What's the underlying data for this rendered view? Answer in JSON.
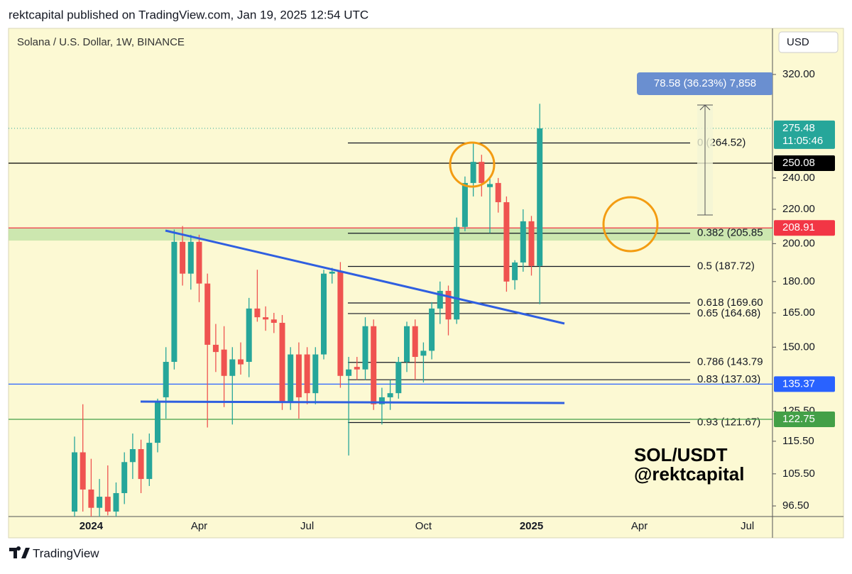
{
  "header": "rektcapital published on TradingView.com, Jan 19, 2025 12:54 UTC",
  "footer": "TradingView",
  "chart_data": {
    "type": "candlestick",
    "title": "Solana / U.S. Dollar, 1W, BINANCE",
    "currency": "USD",
    "watermark": [
      "SOL/USDT",
      "@rektcapital"
    ],
    "log_scale": true,
    "up_color": "#26a69a",
    "down_color": "#ef5350",
    "categories": [
      null,
      null,
      "2024",
      null,
      null,
      null,
      null,
      null,
      null,
      null,
      null,
      null,
      null,
      null,
      null,
      "Apr",
      null,
      null,
      null,
      null,
      null,
      null,
      null,
      null,
      null,
      null,
      null,
      null,
      "Jul",
      null,
      null,
      null,
      null,
      null,
      null,
      null,
      null,
      null,
      null,
      null,
      null,
      null,
      "Oct",
      null,
      null,
      null,
      null,
      null,
      null,
      null,
      null,
      null,
      null,
      null,
      null,
      "2025",
      null,
      null,
      null,
      null,
      null,
      null,
      null,
      null,
      null,
      null,
      null,
      null,
      "Apr",
      null,
      null,
      null,
      null,
      null,
      null,
      null,
      null,
      null,
      null,
      null,
      null,
      "Jul",
      null,
      null,
      null
    ],
    "open": [
      95,
      112,
      101,
      96,
      99,
      95,
      100,
      109,
      113,
      104,
      115,
      130.5,
      144,
      201,
      184,
      201,
      179,
      151,
      149,
      138.5,
      145,
      144,
      167,
      163,
      162,
      160.5,
      129,
      147,
      147,
      132,
      147,
      184,
      185,
      138.5,
      142,
      141,
      159,
      128,
      130.5,
      132,
      144,
      159,
      146.5,
      148.5,
      167,
      175.4,
      162,
      209.5,
      236.7,
      251,
      234,
      236.7,
      224.4,
      180.7,
      189.8,
      212.8,
      188,
      null,
      null,
      null,
      null,
      null,
      null,
      null,
      null,
      null,
      null,
      null,
      null,
      null,
      null,
      null,
      null,
      null,
      null,
      null,
      null,
      null,
      null,
      null,
      null,
      null,
      null,
      null,
      null
    ],
    "high": [
      117,
      128,
      110,
      104,
      108,
      103,
      112,
      118,
      116,
      118,
      130,
      150,
      208,
      210,
      205,
      205,
      184,
      160,
      159,
      150,
      152,
      172,
      186,
      168,
      165,
      164,
      150,
      152,
      150,
      150,
      186,
      187,
      190,
      146,
      146,
      163,
      162,
      134,
      137,
      146,
      161,
      162,
      152,
      170,
      180,
      178,
      215,
      241,
      265,
      256,
      240,
      240,
      228,
      191,
      220,
      216,
      295,
      null,
      null,
      null,
      null,
      null,
      null,
      null,
      null,
      null,
      null,
      null,
      null,
      null,
      null,
      null,
      null,
      null,
      null,
      null,
      null,
      null,
      null,
      null,
      null,
      null,
      null,
      null,
      null
    ],
    "low": [
      93,
      95,
      93,
      93,
      94,
      92,
      97,
      104,
      100,
      102,
      112,
      123,
      141,
      178,
      176,
      170,
      120,
      140,
      127,
      121,
      139,
      138,
      161,
      157,
      156,
      126,
      126,
      123,
      128,
      128,
      145,
      179,
      134,
      111,
      137,
      137,
      126,
      121,
      126,
      130,
      140,
      137,
      136,
      145,
      160,
      155,
      160,
      207,
      228,
      228,
      206,
      218,
      175,
      176,
      185,
      183,
      169,
      null,
      null,
      null,
      null,
      null,
      null,
      null,
      null,
      null,
      null,
      null,
      null,
      null,
      null,
      null,
      null,
      null,
      null,
      null,
      null,
      null,
      null,
      null,
      null,
      null,
      null,
      null,
      null
    ],
    "close": [
      112,
      101,
      96,
      99,
      95,
      100,
      109,
      113,
      104,
      115,
      129,
      144,
      201,
      184,
      201,
      179,
      151,
      148,
      138.5,
      145,
      143,
      167,
      163,
      162,
      160.5,
      129,
      147,
      130.5,
      132,
      147,
      184,
      185,
      138.5,
      141,
      141,
      159,
      128,
      130.5,
      132,
      144,
      159,
      146,
      148.5,
      167,
      175.4,
      162,
      209.5,
      236.7,
      251,
      236.7,
      236,
      224.4,
      180,
      189.8,
      212.8,
      188,
      275.48,
      null,
      null,
      null,
      null,
      null,
      null,
      null,
      null,
      null,
      null,
      null,
      null,
      null,
      null,
      null,
      null,
      null,
      null,
      null,
      null,
      null,
      null,
      null,
      null,
      null,
      null,
      null,
      null
    ],
    "ylim": [
      93.7,
      363.7
    ],
    "yticks": [
      {
        "value": 96.5,
        "label": "96.50"
      },
      {
        "value": 105.5,
        "label": "105.50"
      },
      {
        "value": 115.5,
        "label": "115.50"
      },
      {
        "value": 125.5,
        "label": "125.50"
      },
      {
        "value": 150,
        "label": "150.00"
      },
      {
        "value": 165,
        "label": "165.00"
      },
      {
        "value": 180,
        "label": "180.00"
      },
      {
        "value": 200,
        "label": "200.00"
      },
      {
        "value": 220,
        "label": "220.00"
      },
      {
        "value": 240,
        "label": "240.00"
      },
      {
        "value": 320,
        "label": "320.00"
      }
    ],
    "zone": [
      201.7,
      208.91
    ],
    "price_lines": [
      {
        "value": 275.48,
        "color": "#26a69a",
        "timer": "11:05:46"
      },
      {
        "value": 250.08,
        "color": "#000000"
      },
      {
        "value": 208.91,
        "color": "#f23645"
      },
      {
        "value": 135.37,
        "color": "#2962ff"
      },
      {
        "value": 122.75,
        "color": "#43a047"
      }
    ],
    "fib_levels": [
      {
        "value": 264.52,
        "label": "0 (264.52)"
      },
      {
        "value": 205.85,
        "label": "0.382 (205.85"
      },
      {
        "value": 187.72,
        "label": "0.5 (187.72)"
      },
      {
        "value": 169.6,
        "label": "0.618 (169.60"
      },
      {
        "value": 164.68,
        "label": "0.65 (164.68)"
      },
      {
        "value": 143.79,
        "label": "0.786 (143.79"
      },
      {
        "value": 137.03,
        "label": "0.83 (137.03)"
      },
      {
        "value": 121.67,
        "label": "0.93 (121.67)"
      }
    ],
    "measure_label": "78.58 (36.23%) 7,858"
  }
}
